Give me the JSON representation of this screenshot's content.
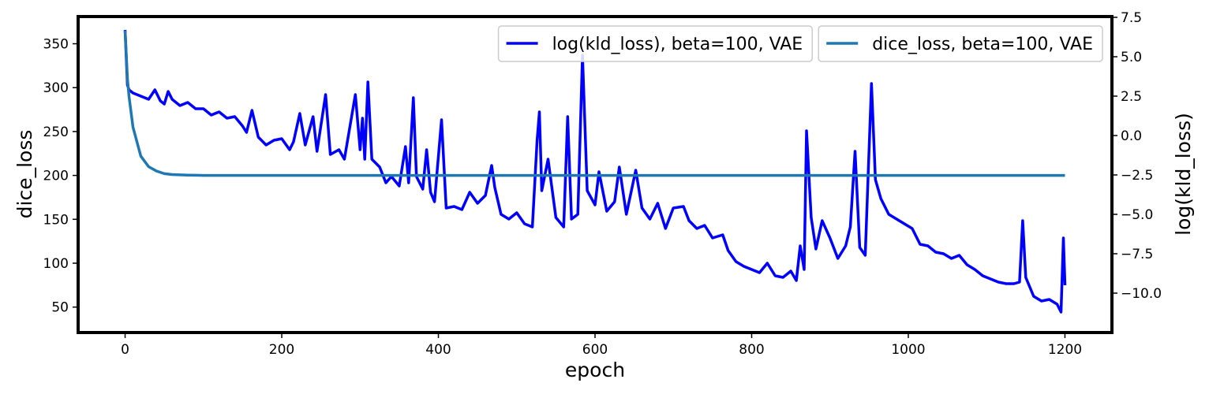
{
  "chart_data": {
    "type": "line",
    "x_label": "epoch",
    "y_label": "dice_loss",
    "y2_label": "log(kld_loss)",
    "xlim": [
      -60,
      1260
    ],
    "xticks": [
      0,
      200,
      400,
      600,
      800,
      1000,
      1200
    ],
    "ylim": [
      21,
      381
    ],
    "yticks": [
      50,
      100,
      150,
      200,
      250,
      300,
      350
    ],
    "y2lim": [
      -12.5,
      7.55
    ],
    "y2ticks": [
      {
        "value": -10,
        "label": "−10.0"
      },
      {
        "value": -7.5,
        "label": "−7.5"
      },
      {
        "value": -5,
        "label": "−5.0"
      },
      {
        "value": -2.5,
        "label": "−2.5"
      },
      {
        "value": 0,
        "label": "0.0"
      },
      {
        "value": 2.5,
        "label": "2.5"
      },
      {
        "value": 5,
        "label": "5.0"
      },
      7.5
    ],
    "grid": false,
    "legend": "upper right",
    "series": [
      {
        "name": "log(kld_loss), beta=100, VAE",
        "color": "#0000ff",
        "axis": "y2",
        "x": [
          0,
          3,
          5,
          10,
          20,
          30,
          38,
          45,
          50,
          55,
          60,
          70,
          80,
          90,
          100,
          110,
          120,
          130,
          140,
          150,
          155,
          162,
          170,
          180,
          190,
          200,
          210,
          215,
          223,
          230,
          240,
          245,
          256,
          262,
          273,
          280,
          294,
          300,
          303,
          306,
          310,
          315,
          325,
          333,
          340,
          350,
          358,
          362,
          368,
          372,
          380,
          385,
          390,
          395,
          404,
          410,
          420,
          430,
          440,
          450,
          460,
          468,
          472,
          480,
          490,
          500,
          510,
          520,
          526,
          529,
          532,
          540,
          550,
          560,
          565,
          570,
          578,
          584,
          590,
          600,
          605,
          615,
          625,
          631,
          640,
          652,
          660,
          670,
          680,
          690,
          700,
          713,
          720,
          730,
          740,
          750,
          763,
          770,
          780,
          790,
          800,
          810,
          820,
          830,
          840,
          850,
          857,
          862,
          867,
          870,
          876,
          882,
          890,
          900,
          910,
          920,
          926,
          932,
          938,
          945,
          953,
          958,
          965,
          975,
          985,
          995,
          1005,
          1015,
          1025,
          1035,
          1045,
          1055,
          1065,
          1075,
          1085,
          1095,
          1105,
          1115,
          1125,
          1135,
          1142,
          1146,
          1150,
          1160,
          1170,
          1180,
          1190,
          1195,
          1198,
          1200
        ],
        "values": [
          6.7,
          3.2,
          2.9,
          2.7,
          2.5,
          2.3,
          2.9,
          2.2,
          2.0,
          2.8,
          2.3,
          1.9,
          2.1,
          1.7,
          1.7,
          1.3,
          1.5,
          1.1,
          1.2,
          0.6,
          0.2,
          1.6,
          -0.1,
          -0.6,
          -0.3,
          -0.2,
          -0.9,
          -0.4,
          1.4,
          -0.6,
          1.2,
          -1.0,
          2.6,
          -1.2,
          -0.9,
          -1.5,
          2.6,
          -0.9,
          1.1,
          -1.5,
          3.4,
          -1.5,
          -2.0,
          -3.0,
          -2.6,
          -3.2,
          -0.7,
          -3.0,
          2.4,
          -2.6,
          -3.4,
          -0.9,
          -3.6,
          -4.2,
          1.0,
          -4.6,
          -4.5,
          -4.7,
          -3.6,
          -4.3,
          -3.8,
          -1.9,
          -3.3,
          -5.0,
          -5.3,
          -4.9,
          -5.6,
          -5.8,
          -0.3,
          1.5,
          -3.5,
          -1.5,
          -5.2,
          -5.8,
          1.2,
          -5.3,
          -5.0,
          5.1,
          -3.5,
          -4.4,
          -2.3,
          -4.8,
          -4.2,
          -2.0,
          -5.0,
          -2.2,
          -4.6,
          -5.3,
          -4.3,
          -5.9,
          -4.6,
          -4.5,
          -5.4,
          -5.9,
          -5.7,
          -6.5,
          -6.3,
          -7.3,
          -8.0,
          -8.3,
          -8.5,
          -8.7,
          -8.1,
          -8.9,
          -9.0,
          -8.6,
          -9.2,
          -7.0,
          -8.5,
          0.3,
          -5.2,
          -7.2,
          -5.4,
          -6.5,
          -7.8,
          -7.0,
          -5.8,
          -1.0,
          -7.1,
          -7.6,
          3.3,
          -2.8,
          -4.0,
          -5.0,
          -5.3,
          -5.6,
          -5.9,
          -6.9,
          -7.0,
          -7.4,
          -7.5,
          -7.8,
          -7.6,
          -8.2,
          -8.5,
          -8.9,
          -9.1,
          -9.3,
          -9.4,
          -9.4,
          -9.3,
          -5.4,
          -9.0,
          -10.2,
          -10.5,
          -10.4,
          -10.7,
          -11.2,
          -6.5,
          -9.5
        ]
      },
      {
        "name": "dice_loss, beta=100, VAE",
        "color": "#1f77b4",
        "x": [
          0,
          3,
          5,
          10,
          20,
          30,
          40,
          50,
          60,
          70,
          80,
          90,
          100,
          1200
        ],
        "values": [
          365,
          310,
          290,
          255,
          222,
          210,
          205,
          202,
          201,
          200.6,
          200.4,
          200.2,
          200,
          200
        ]
      }
    ]
  }
}
